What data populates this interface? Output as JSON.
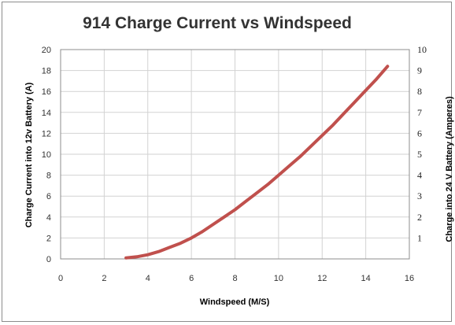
{
  "chart_data": {
    "type": "line",
    "title": "914 Charge Current vs Windspeed",
    "xlabel": "Windspeed (M/S)",
    "ylabel": "Charge Current into 12v Battery (A)",
    "y2label": "Charge into 24 V Battery (Amperes)",
    "xlim": [
      0,
      16
    ],
    "ylim": [
      0,
      20
    ],
    "y2lim": [
      0,
      10
    ],
    "x_ticks": [
      "0",
      "2",
      "4",
      "6",
      "8",
      "10",
      "12",
      "14",
      "16"
    ],
    "y_ticks": [
      "0",
      "2",
      "4",
      "6",
      "8",
      "10",
      "12",
      "14",
      "16",
      "18",
      "20"
    ],
    "y2_ticks": [
      "1",
      "2",
      "3",
      "4",
      "5",
      "6",
      "7",
      "8",
      "9",
      "10"
    ],
    "grid": true,
    "series": [
      {
        "color": "#c0504d",
        "x": [
          3,
          3.5,
          4,
          4.5,
          5,
          5.5,
          6,
          6.5,
          7,
          7.5,
          8,
          8.5,
          9,
          9.5,
          10,
          10.5,
          11,
          11.5,
          12,
          12.5,
          13,
          13.5,
          14,
          14.5,
          15
        ],
        "y": [
          0.1,
          0.2,
          0.4,
          0.7,
          1.1,
          1.5,
          2.0,
          2.6,
          3.3,
          4.0,
          4.7,
          5.5,
          6.3,
          7.1,
          8.0,
          8.9,
          9.8,
          10.8,
          11.8,
          12.8,
          13.9,
          15.0,
          16.1,
          17.2,
          18.4
        ]
      }
    ]
  }
}
